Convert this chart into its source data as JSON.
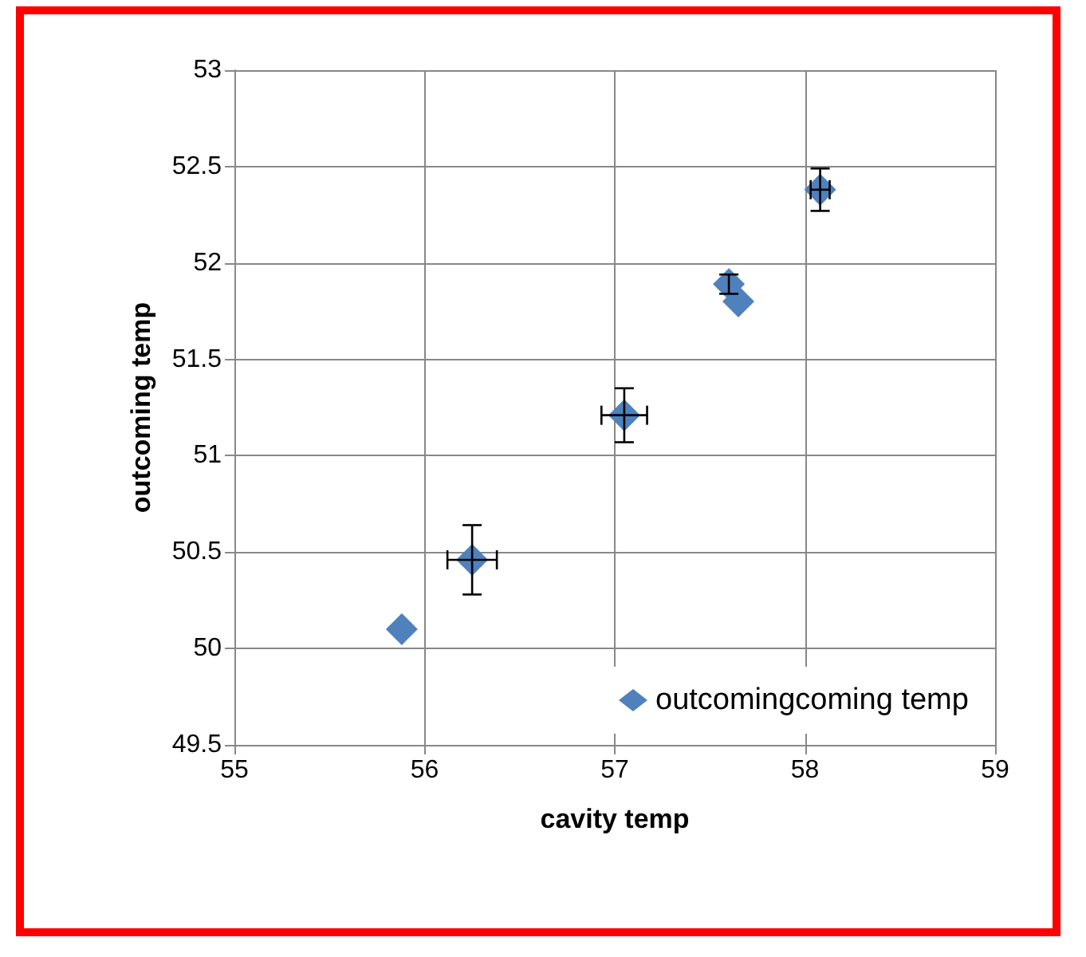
{
  "chart_data": {
    "type": "scatter",
    "xlabel": "cavity temp",
    "ylabel": "outcoming temp",
    "x": [
      55.88,
      56.25,
      57.05,
      57.6,
      57.65,
      58.08
    ],
    "series": [
      {
        "name": "outcomingcoming temp",
        "color": "#4f81bd",
        "values": [
          50.1,
          50.46,
          51.21,
          51.89,
          51.8,
          52.38
        ],
        "errors": [
          null,
          0.18,
          0.14,
          0.05,
          null,
          0.11
        ],
        "xerrors": [
          null,
          0.13,
          0.12,
          null,
          null,
          0.05
        ]
      }
    ],
    "xlim": [
      55,
      59
    ],
    "xticks": [
      55,
      56,
      57,
      58,
      59
    ],
    "ylim": [
      49.5,
      53
    ],
    "yticks": [
      49.5,
      50,
      50.5,
      51,
      51.5,
      52,
      52.5,
      53
    ],
    "grid": true,
    "legend": "bottom right",
    "marker": "diamond"
  }
}
